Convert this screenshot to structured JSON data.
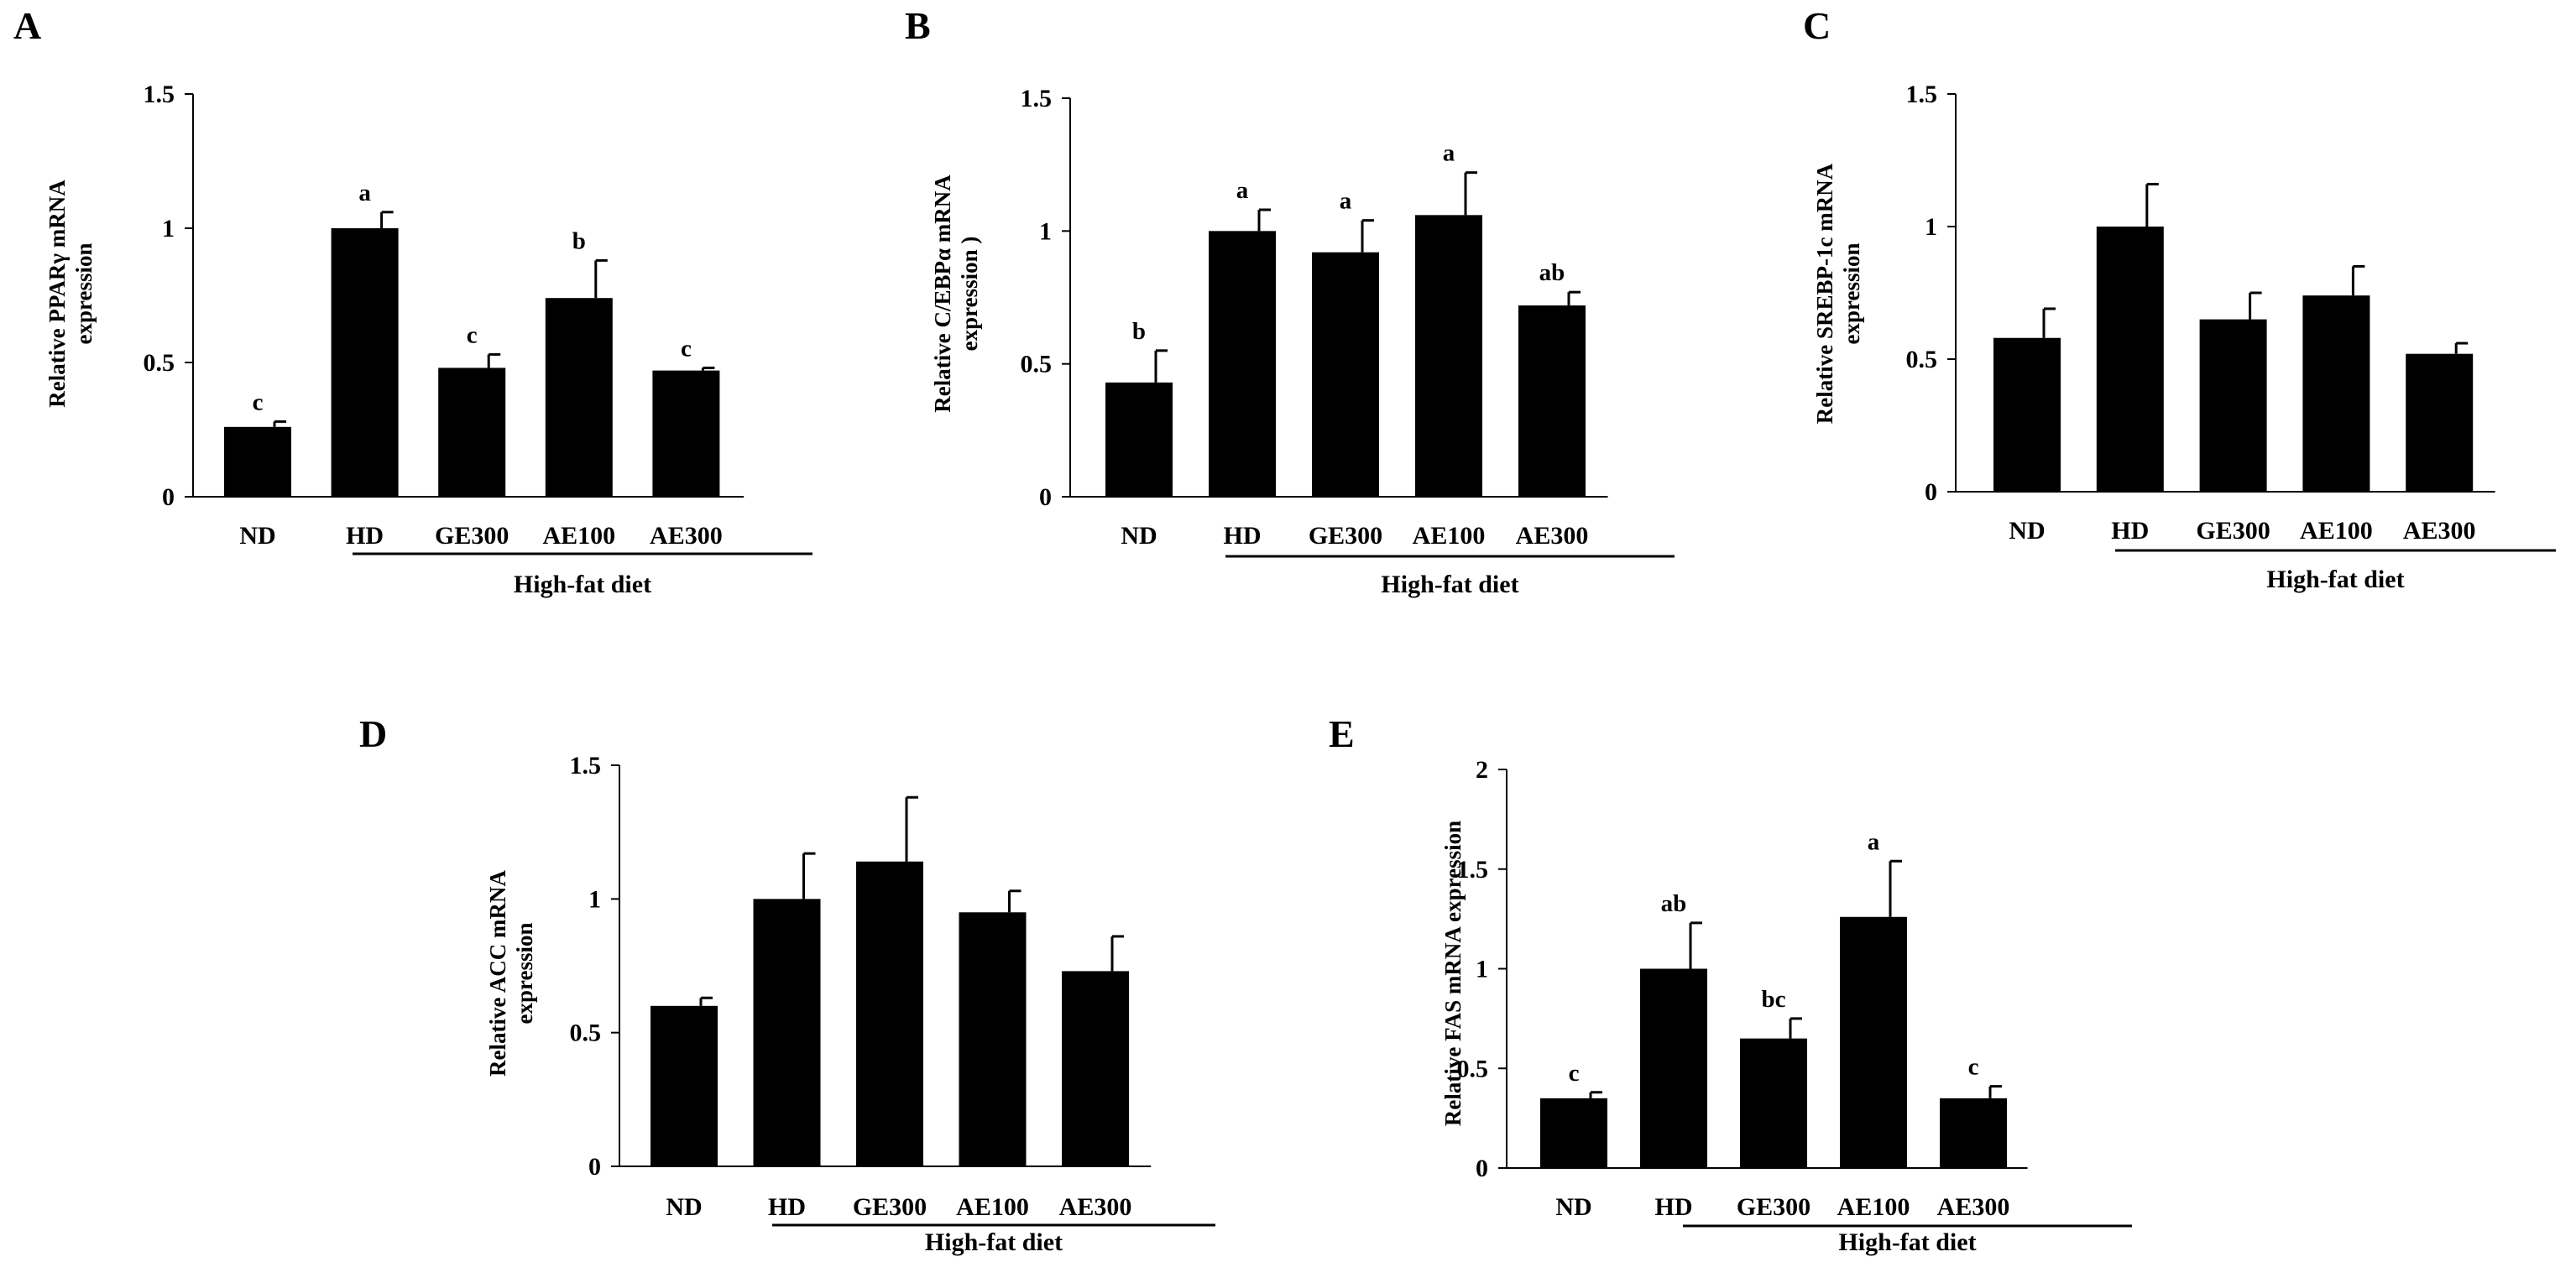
{
  "figure_title": "",
  "chart_data": [
    {
      "panel": "A",
      "type": "bar",
      "ylabel_lines": [
        "Relative PPARγ mRNA",
        "expression"
      ],
      "ylim": [
        0,
        1.5
      ],
      "yticks": [
        "0",
        "0.5",
        "1",
        "1.5"
      ],
      "ytick_values": [
        0,
        0.5,
        1,
        1.5
      ],
      "categories": [
        "ND",
        "HD",
        "GE300",
        "AE100",
        "AE300"
      ],
      "values": [
        0.26,
        1.0,
        0.48,
        0.74,
        0.47
      ],
      "errors": [
        0.02,
        0.06,
        0.05,
        0.14,
        0.01
      ],
      "significance": [
        "c",
        "a",
        "c",
        "b",
        "c"
      ],
      "group_label": "High-fat diet",
      "group_span": [
        "HD",
        "AE300"
      ]
    },
    {
      "panel": "B",
      "type": "bar",
      "ylabel_lines": [
        "Relative C/EBPα mRNA",
        "expression )"
      ],
      "ylim": [
        0,
        1.5
      ],
      "yticks": [
        "0",
        "0.5",
        "1",
        "1.5"
      ],
      "ytick_values": [
        0,
        0.5,
        1,
        1.5
      ],
      "categories": [
        "ND",
        "HD",
        "GE300",
        "AE100",
        "AE300"
      ],
      "values": [
        0.43,
        1.0,
        0.92,
        1.06,
        0.72
      ],
      "errors": [
        0.12,
        0.08,
        0.12,
        0.16,
        0.05
      ],
      "significance": [
        "b",
        "a",
        "a",
        "a",
        "ab"
      ],
      "group_label": "High-fat diet",
      "group_span": [
        "HD",
        "AE300"
      ]
    },
    {
      "panel": "C",
      "type": "bar",
      "ylabel_lines": [
        "Relative SREBP-1c mRNA",
        "expression"
      ],
      "ylim": [
        0,
        1.5
      ],
      "yticks": [
        "0",
        "0.5",
        "1",
        "1.5"
      ],
      "ytick_values": [
        0,
        0.5,
        1,
        1.5
      ],
      "categories": [
        "ND",
        "HD",
        "GE300",
        "AE100",
        "AE300"
      ],
      "values": [
        0.58,
        1.0,
        0.65,
        0.74,
        0.52
      ],
      "errors": [
        0.11,
        0.16,
        0.1,
        0.11,
        0.04
      ],
      "significance": [
        "",
        "",
        "",
        "",
        ""
      ],
      "group_label": "High-fat diet",
      "group_span": [
        "HD",
        "AE300"
      ]
    },
    {
      "panel": "D",
      "type": "bar",
      "ylabel_lines": [
        "Relative ACC mRNA",
        "expression"
      ],
      "ylim": [
        0,
        1.5
      ],
      "yticks": [
        "0",
        "0.5",
        "1",
        "1.5"
      ],
      "ytick_values": [
        0,
        0.5,
        1,
        1.5
      ],
      "categories": [
        "ND",
        "HD",
        "GE300",
        "AE100",
        "AE300"
      ],
      "values": [
        0.6,
        1.0,
        1.14,
        0.95,
        0.73
      ],
      "errors": [
        0.03,
        0.17,
        0.24,
        0.08,
        0.13
      ],
      "significance": [
        "",
        "",
        "",
        "",
        ""
      ],
      "group_label": "High-fat diet",
      "group_span": [
        "HD",
        "AE300"
      ]
    },
    {
      "panel": "E",
      "type": "bar",
      "ylabel_lines": [
        "Relative FAS mRNA expression"
      ],
      "ylim": [
        0,
        2
      ],
      "yticks": [
        "0",
        "0.5",
        "1",
        "1.5",
        "2"
      ],
      "ytick_values": [
        0,
        0.5,
        1,
        1.5,
        2
      ],
      "categories": [
        "ND",
        "HD",
        "GE300",
        "AE100",
        "AE300"
      ],
      "values": [
        0.35,
        1.0,
        0.65,
        1.26,
        0.35
      ],
      "errors": [
        0.03,
        0.23,
        0.1,
        0.28,
        0.06
      ],
      "significance": [
        "c",
        "ab",
        "bc",
        "a",
        "c"
      ],
      "group_label": "High-fat diet",
      "group_span": [
        "HD",
        "AE300"
      ]
    }
  ]
}
